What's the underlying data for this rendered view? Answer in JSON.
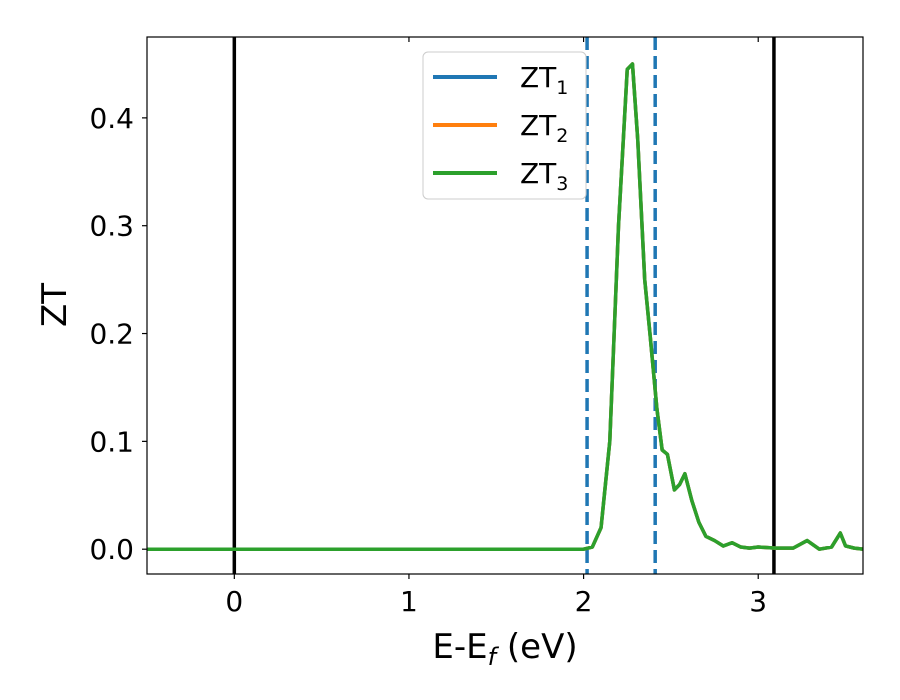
{
  "chart_data": {
    "type": "line",
    "xlabel": {
      "main": "E-E",
      "sub": "f",
      "unit": " (eV)"
    },
    "ylabel": "ZT",
    "xlim": [
      -0.5,
      3.6
    ],
    "ylim": [
      -0.023,
      0.475
    ],
    "x_ticks": [
      0,
      1,
      2,
      3
    ],
    "x_tick_labels": [
      "0",
      "1",
      "2",
      "3"
    ],
    "y_ticks": [
      0.0,
      0.1,
      0.2,
      0.3,
      0.4
    ],
    "y_tick_labels": [
      "0.0",
      "0.1",
      "0.2",
      "0.3",
      "0.4"
    ],
    "grid": false,
    "legend_position": "upper-center",
    "vlines": [
      {
        "x": 0.0,
        "style": "solid",
        "color": "#000000"
      },
      {
        "x": 3.09,
        "style": "solid",
        "color": "#000000"
      },
      {
        "x": 2.02,
        "style": "dashed",
        "color": "#1f77b4"
      },
      {
        "x": 2.41,
        "style": "dashed",
        "color": "#1f77b4"
      }
    ],
    "series": [
      {
        "name": "ZT",
        "sub": "1",
        "color": "#1f77b4",
        "x": [
          -0.5,
          1.9,
          2.0,
          2.05,
          2.1,
          2.15,
          2.2,
          2.25,
          2.28,
          2.31,
          2.35,
          2.38,
          2.42,
          2.45,
          2.48,
          2.52,
          2.55,
          2.58,
          2.62,
          2.66,
          2.7,
          2.75,
          2.8,
          2.85,
          2.9,
          2.95,
          3.0,
          3.1,
          3.2,
          3.28,
          3.35,
          3.42,
          3.47,
          3.5,
          3.55,
          3.6
        ],
        "y": [
          0.0,
          0.0,
          0.0,
          0.002,
          0.02,
          0.1,
          0.3,
          0.445,
          0.45,
          0.38,
          0.25,
          0.2,
          0.13,
          0.092,
          0.088,
          0.055,
          0.06,
          0.07,
          0.045,
          0.025,
          0.012,
          0.008,
          0.003,
          0.006,
          0.002,
          0.001,
          0.002,
          0.001,
          0.001,
          0.008,
          0.0,
          0.002,
          0.015,
          0.003,
          0.001,
          0.0
        ]
      },
      {
        "name": "ZT",
        "sub": "2",
        "color": "#ff7f0e",
        "x": [
          -0.5,
          1.9,
          2.0,
          2.05,
          2.1,
          2.15,
          2.2,
          2.25,
          2.28,
          2.31,
          2.35,
          2.38,
          2.42,
          2.45,
          2.48,
          2.52,
          2.55,
          2.58,
          2.62,
          2.66,
          2.7,
          2.75,
          2.8,
          2.85,
          2.9,
          2.95,
          3.0,
          3.1,
          3.2,
          3.28,
          3.35,
          3.42,
          3.47,
          3.5,
          3.55,
          3.6
        ],
        "y": [
          0.0,
          0.0,
          0.0,
          0.002,
          0.02,
          0.1,
          0.3,
          0.445,
          0.45,
          0.38,
          0.25,
          0.2,
          0.13,
          0.092,
          0.088,
          0.055,
          0.06,
          0.07,
          0.045,
          0.025,
          0.012,
          0.008,
          0.003,
          0.006,
          0.002,
          0.001,
          0.002,
          0.001,
          0.001,
          0.008,
          0.0,
          0.002,
          0.015,
          0.003,
          0.001,
          0.0
        ]
      },
      {
        "name": "ZT",
        "sub": "3",
        "color": "#2ca02c",
        "x": [
          -0.5,
          1.9,
          2.0,
          2.05,
          2.1,
          2.15,
          2.2,
          2.25,
          2.28,
          2.31,
          2.35,
          2.38,
          2.42,
          2.45,
          2.48,
          2.52,
          2.55,
          2.58,
          2.62,
          2.66,
          2.7,
          2.75,
          2.8,
          2.85,
          2.9,
          2.95,
          3.0,
          3.1,
          3.2,
          3.28,
          3.35,
          3.42,
          3.47,
          3.5,
          3.55,
          3.6
        ],
        "y": [
          0.0,
          0.0,
          0.0,
          0.002,
          0.02,
          0.1,
          0.3,
          0.445,
          0.45,
          0.38,
          0.25,
          0.2,
          0.13,
          0.092,
          0.088,
          0.055,
          0.06,
          0.07,
          0.045,
          0.025,
          0.012,
          0.008,
          0.003,
          0.006,
          0.002,
          0.001,
          0.002,
          0.001,
          0.001,
          0.008,
          0.0,
          0.002,
          0.015,
          0.003,
          0.001,
          0.0
        ]
      }
    ]
  }
}
